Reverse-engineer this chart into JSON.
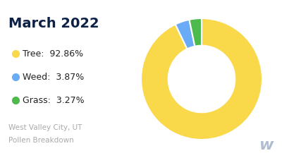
{
  "title": "March 2022",
  "title_color": "#0d2147",
  "title_fontsize": 14,
  "categories": [
    "Tree",
    "Weed",
    "Grass"
  ],
  "values": [
    92.86,
    3.87,
    3.27
  ],
  "colors": [
    "#f9d84a",
    "#6aabf7",
    "#4cba4c"
  ],
  "legend_labels": [
    "Tree:  92.86%",
    "Weed:  3.87%",
    "Grass:  3.27%"
  ],
  "footer_line1": "West Valley City, UT",
  "footer_line2": "Pollen Breakdown",
  "footer_color": "#aaaaaa",
  "background_color": "#ffffff",
  "startangle": 90,
  "donut_width": 0.45
}
